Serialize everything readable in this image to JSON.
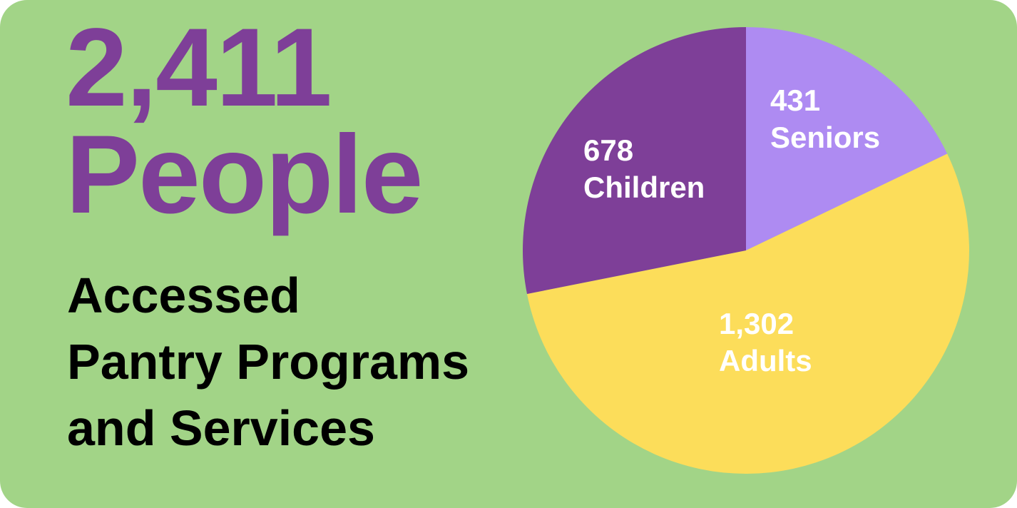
{
  "headline": {
    "number": "2,411",
    "word": "People"
  },
  "subtitle": {
    "lines": [
      "Accessed",
      "Pantry Programs",
      "and Services"
    ]
  },
  "colors": {
    "background": "#a2d487",
    "accent": "#7e3f98",
    "seniors": "#ae8bf2",
    "adults": "#fcdd5a",
    "children": "#7e3f98"
  },
  "chart_data": {
    "type": "pie",
    "slices": [
      {
        "value": 431,
        "value_label": "431",
        "name": "Seniors",
        "color": "#ae8bf2"
      },
      {
        "value": 1302,
        "value_label": "1,302",
        "name": "Adults",
        "color": "#fcdd5a"
      },
      {
        "value": 678,
        "value_label": "678",
        "name": "Children",
        "color": "#7e3f98"
      }
    ]
  }
}
